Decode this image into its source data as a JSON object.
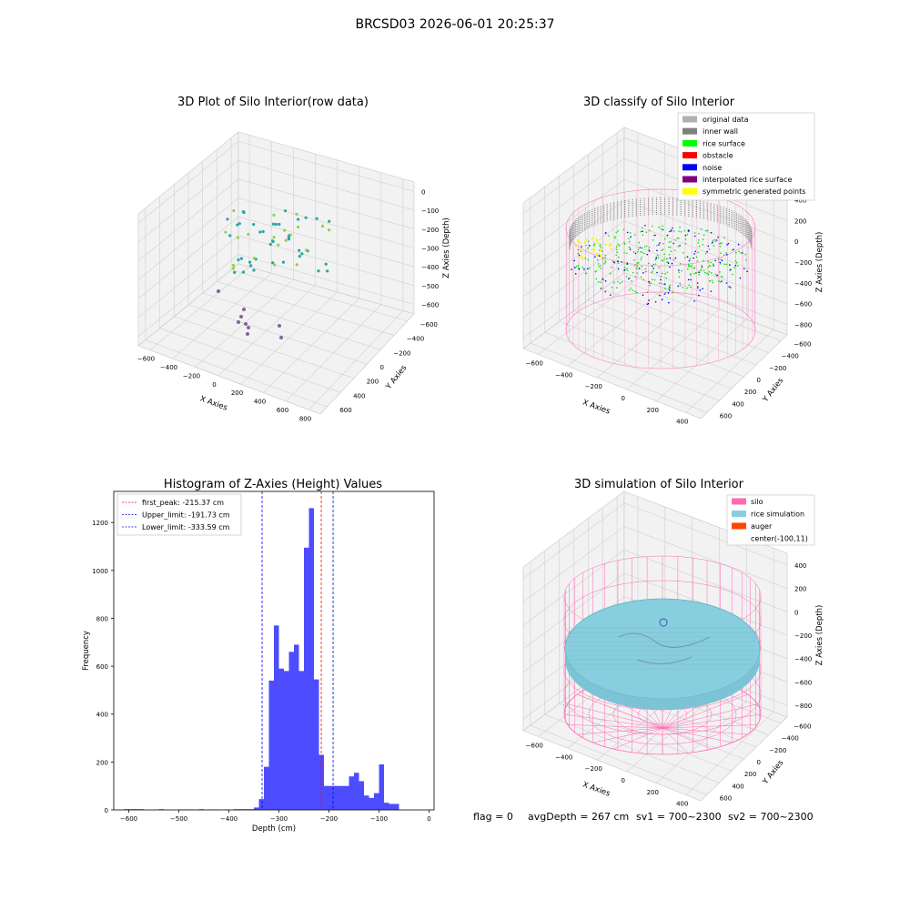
{
  "suptitle": "BRCSD03 2026-06-01 20:25:37",
  "footer": {
    "flag": "flag = 0",
    "avgdepth": "avgDepth = 267 cm",
    "sv1": "sv1 = 700~2300",
    "sv2": "sv2 = 700~2300"
  },
  "colors": {
    "pane": "#f2f2f2",
    "grid": "#d0d0d0",
    "hist_bar": "#4d4dff",
    "silo": "#ff69b4",
    "rice": "#87cedf",
    "peak_line": "#ff0000",
    "limit_line": "#0000ff"
  },
  "panel1": {
    "title": "3D Plot of Silo Interior(row data)",
    "xlabel": "X Axies",
    "ylabel": "Y Axies",
    "zlabel": "Z Axies (Depth)",
    "xticks": [
      "−600",
      "−400",
      "−200",
      "0",
      "200",
      "400",
      "600",
      "800"
    ],
    "yticks": [
      "600",
      "400",
      "200",
      "0",
      "−200",
      "−400",
      "−600"
    ],
    "zticks": [
      "0",
      "−100",
      "−200",
      "−300",
      "−400",
      "−500",
      "−600"
    ]
  },
  "panel2": {
    "title": "3D classify of Silo Interior",
    "xlabel": "X Axies",
    "ylabel": "Y Axies",
    "zlabel": "Z Axies (Depth)",
    "xticks": [
      "−600",
      "−400",
      "−200",
      "0",
      "200",
      "400"
    ],
    "yticks": [
      "600",
      "400",
      "200",
      "0",
      "−200",
      "−400",
      "−600"
    ],
    "zticks": [
      "400",
      "200",
      "0",
      "−200",
      "−400",
      "−600",
      "−800"
    ],
    "legend": [
      {
        "label": "original data",
        "color": "#b0b0b0"
      },
      {
        "label": "inner wall",
        "color": "#808080"
      },
      {
        "label": "rice surface",
        "color": "#00ff00"
      },
      {
        "label": "obstacle",
        "color": "#ff0000"
      },
      {
        "label": "noise",
        "color": "#0000ff"
      },
      {
        "label": "interpolated rice surface",
        "color": "#800080"
      },
      {
        "label": "symmetric generated points",
        "color": "#ffff00"
      }
    ]
  },
  "panel4": {
    "title": "3D simulation of Silo Interior",
    "xlabel": "X Axies",
    "ylabel": "Y Axies",
    "zlabel": "Z Axies (Depth)",
    "xticks": [
      "−600",
      "−400",
      "−200",
      "0",
      "200",
      "400"
    ],
    "yticks": [
      "600",
      "400",
      "200",
      "0",
      "−200",
      "−400",
      "−600"
    ],
    "zticks": [
      "400",
      "200",
      "0",
      "−200",
      "−400",
      "−600",
      "−800"
    ],
    "legend": [
      {
        "label": "silo",
        "color": "#ff69b4"
      },
      {
        "label": "rice simulation",
        "color": "#87cedf"
      },
      {
        "label": "auger",
        "color": "#ff4500"
      },
      {
        "label": "center(-100,11)",
        "color": "none"
      }
    ]
  },
  "chart_data": [
    {
      "type": "scatter",
      "title": "3D Plot of Silo Interior(row data)",
      "xlabel": "X Axies",
      "ylabel": "Y Axies",
      "zlabel": "Z Axies (Depth)",
      "xlim": [
        -600,
        800
      ],
      "ylim": [
        -600,
        600
      ],
      "zlim": [
        -600,
        0
      ],
      "description_series": [
        {
          "shape": "cylinder-ring",
          "radius": 560,
          "z_top": -100,
          "z_bottom": -330
        }
      ]
    },
    {
      "type": "scatter",
      "title": "3D classify of Silo Interior",
      "xlabel": "X Axies",
      "ylabel": "Y Axies",
      "zlabel": "Z Axies (Depth)",
      "xlim": [
        -600,
        400
      ],
      "ylim": [
        -600,
        600
      ],
      "zlim": [
        -800,
        200
      ]
    },
    {
      "type": "bar",
      "title": "Histogram of Z-Axies (Height) Values",
      "xlabel": "Depth (cm)",
      "ylabel": "Frequency",
      "xlim": [
        -630,
        10
      ],
      "ylim": [
        0,
        1330
      ],
      "xticks": [
        -600,
        -500,
        -400,
        -300,
        -200,
        -100,
        0
      ],
      "yticks": [
        0,
        200,
        400,
        600,
        800,
        1000,
        1200
      ],
      "bins": [
        {
          "x0": -610,
          "x1": -600,
          "y": 3
        },
        {
          "x0": -600,
          "x1": -590,
          "y": 3
        },
        {
          "x0": -590,
          "x1": -580,
          "y": 3
        },
        {
          "x0": -580,
          "x1": -570,
          "y": 3
        },
        {
          "x0": -570,
          "x1": -560,
          "y": 0
        },
        {
          "x0": -560,
          "x1": -550,
          "y": 0
        },
        {
          "x0": -550,
          "x1": -540,
          "y": 0
        },
        {
          "x0": -540,
          "x1": -530,
          "y": 3
        },
        {
          "x0": -530,
          "x1": -520,
          "y": 0
        },
        {
          "x0": -520,
          "x1": -510,
          "y": 0
        },
        {
          "x0": -510,
          "x1": -500,
          "y": 0
        },
        {
          "x0": -500,
          "x1": -490,
          "y": 2
        },
        {
          "x0": -490,
          "x1": -480,
          "y": 2
        },
        {
          "x0": -480,
          "x1": -470,
          "y": 2
        },
        {
          "x0": -470,
          "x1": -460,
          "y": 0
        },
        {
          "x0": -460,
          "x1": -450,
          "y": 3
        },
        {
          "x0": -450,
          "x1": -440,
          "y": 0
        },
        {
          "x0": -440,
          "x1": -430,
          "y": 2
        },
        {
          "x0": -430,
          "x1": -420,
          "y": 2
        },
        {
          "x0": -420,
          "x1": -410,
          "y": 0
        },
        {
          "x0": -410,
          "x1": -400,
          "y": 2
        },
        {
          "x0": -400,
          "x1": -390,
          "y": 0
        },
        {
          "x0": -390,
          "x1": -380,
          "y": 3
        },
        {
          "x0": -380,
          "x1": -370,
          "y": 3
        },
        {
          "x0": -370,
          "x1": -360,
          "y": 3
        },
        {
          "x0": -360,
          "x1": -350,
          "y": 3
        },
        {
          "x0": -350,
          "x1": -340,
          "y": 10
        },
        {
          "x0": -340,
          "x1": -330,
          "y": 45
        },
        {
          "x0": -330,
          "x1": -320,
          "y": 180
        },
        {
          "x0": -320,
          "x1": -310,
          "y": 540
        },
        {
          "x0": -310,
          "x1": -300,
          "y": 770
        },
        {
          "x0": -300,
          "x1": -290,
          "y": 590
        },
        {
          "x0": -290,
          "x1": -280,
          "y": 580
        },
        {
          "x0": -280,
          "x1": -270,
          "y": 660
        },
        {
          "x0": -270,
          "x1": -260,
          "y": 690
        },
        {
          "x0": -260,
          "x1": -250,
          "y": 580
        },
        {
          "x0": -250,
          "x1": -240,
          "y": 1095
        },
        {
          "x0": -240,
          "x1": -230,
          "y": 1260
        },
        {
          "x0": -230,
          "x1": -220,
          "y": 545
        },
        {
          "x0": -220,
          "x1": -210,
          "y": 230
        },
        {
          "x0": -210,
          "x1": -200,
          "y": 100
        },
        {
          "x0": -200,
          "x1": -190,
          "y": 100
        },
        {
          "x0": -190,
          "x1": -180,
          "y": 100
        },
        {
          "x0": -180,
          "x1": -170,
          "y": 100
        },
        {
          "x0": -170,
          "x1": -160,
          "y": 100
        },
        {
          "x0": -160,
          "x1": -150,
          "y": 140
        },
        {
          "x0": -150,
          "x1": -140,
          "y": 155
        },
        {
          "x0": -140,
          "x1": -130,
          "y": 120
        },
        {
          "x0": -130,
          "x1": -120,
          "y": 60
        },
        {
          "x0": -120,
          "x1": -110,
          "y": 50
        },
        {
          "x0": -110,
          "x1": -100,
          "y": 70
        },
        {
          "x0": -100,
          "x1": -90,
          "y": 190
        },
        {
          "x0": -90,
          "x1": -80,
          "y": 30
        },
        {
          "x0": -80,
          "x1": -70,
          "y": 25
        },
        {
          "x0": -70,
          "x1": -60,
          "y": 25
        }
      ],
      "vlines": [
        {
          "label": "first_peak: -215.37 cm",
          "x": -215.37,
          "color": "#ff0000"
        },
        {
          "label": "Upper_limit: -191.73 cm",
          "x": -191.73,
          "color": "#0000ff"
        },
        {
          "label": "Lower_limit: -333.59 cm",
          "x": -333.59,
          "color": "#0000ff"
        }
      ],
      "legend_position": "top-left"
    },
    {
      "type": "scatter",
      "title": "3D simulation of Silo Interior",
      "xlabel": "X Axies",
      "ylabel": "Y Axies",
      "zlabel": "Z Axies (Depth)",
      "xlim": [
        -600,
        400
      ],
      "ylim": [
        -600,
        600
      ],
      "zlim": [
        -800,
        400
      ]
    }
  ]
}
